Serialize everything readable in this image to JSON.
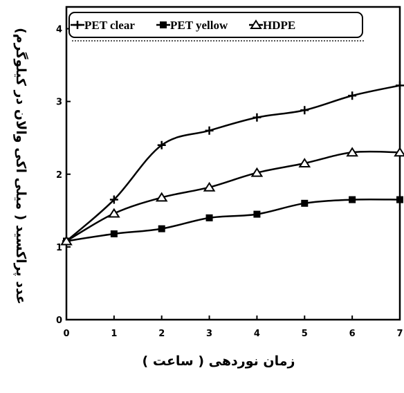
{
  "chart_data": {
    "type": "line",
    "xlabel": "زمان نوردهی ( ساعت )",
    "ylabel": "عدد پراکسید ( میلی اکی والان در کیلوگرم)",
    "x": [
      0,
      1,
      2,
      3,
      4,
      5,
      6,
      7
    ],
    "xlim": [
      0,
      7
    ],
    "ylim": [
      0,
      4.3
    ],
    "x_ticks": [
      "0",
      "1",
      "2",
      "3",
      "4",
      "5",
      "6",
      "7"
    ],
    "y_ticks": [
      {
        "value": 0,
        "label": "0"
      },
      {
        "value": 1,
        "label": "1"
      },
      {
        "value": 2,
        "label": "2"
      },
      {
        "value": 3,
        "label": "3"
      },
      {
        "value": 4,
        "label": "4"
      }
    ],
    "grid": false,
    "legend_position": "top",
    "series": [
      {
        "name": "PET clear",
        "marker": "plus",
        "values": [
          1.08,
          1.65,
          2.4,
          2.6,
          2.78,
          2.88,
          3.08,
          3.22
        ]
      },
      {
        "name": "PET yellow",
        "marker": "square",
        "values": [
          1.08,
          1.18,
          1.25,
          1.4,
          1.45,
          1.6,
          1.65,
          1.65
        ]
      },
      {
        "name": "HDPE",
        "marker": "triangle",
        "values": [
          1.08,
          1.46,
          1.68,
          1.82,
          2.02,
          2.15,
          2.3,
          2.3
        ]
      }
    ]
  }
}
